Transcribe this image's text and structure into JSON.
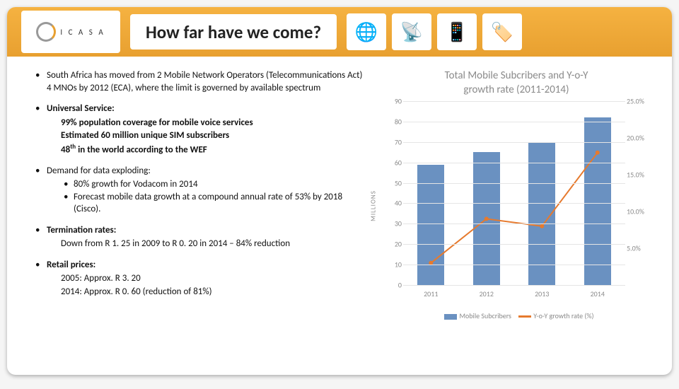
{
  "header": {
    "logo_text": "I C A S A",
    "title": "How far have we come?",
    "icons": [
      "🌐",
      "📡",
      "📱",
      "🏷️"
    ]
  },
  "bullets": {
    "b1": "South Africa has moved from 2 Mobile Network Operators (Telecommunications Act)  4 MNOs by 2012 (ECA), where the limit is governed by available spectrum",
    "b2_head": "Universal Service:",
    "b2_l1": "99% population coverage for mobile voice services",
    "b2_l2": "Estimated 60 million unique SIM subscribers",
    "b2_l3_pre": "48",
    "b2_l3_sup": "th",
    "b2_l3_post": " in the world according to the WEF",
    "b3_head": "Demand for data exploding:",
    "b3_l1": "80% growth for Vodacom in 2014",
    "b3_l2": "Forecast mobile data growth at a compound annual rate of 53% by 2018 (Cisco).",
    "b4_head": "Termination rates:",
    "b4_l1": "Down from R 1. 25 in 2009 to R 0. 20 in 2014 – 84% reduction",
    "b5_head": "Retail prices:",
    "b5_l1": "2005:  Approx. R 3. 20",
    "b5_l2": "2014:  Approx. R 0. 60 (reduction of 81%)"
  },
  "chart": {
    "title_l1": "Total Mobile Subcribers and Y-o-Y",
    "title_l2": "growth rate (2011-2014)",
    "type": "bar+line combo",
    "y_label": "MILLIONS",
    "categories": [
      "2011",
      "2012",
      "2013",
      "2014"
    ],
    "bar_values": [
      59,
      65,
      70,
      82
    ],
    "bar_color": "#6a91c1",
    "y_min": 0,
    "y_max": 90,
    "y_tick_step": 10,
    "line_values": [
      3.0,
      9.0,
      8.0,
      18.0
    ],
    "line_color": "#e67a2e",
    "y2_ticks": [
      25.0,
      20.0,
      15.0,
      10.0,
      5.0
    ],
    "y2_min": 0,
    "y2_max": 25,
    "legend": {
      "bar": "Mobile Subcribers",
      "line": "Y-o-Y growth rate (%)"
    },
    "grid_color": "#e5e5e5",
    "background_color": "#ffffff",
    "axis_font_color": "#8a8a8a",
    "axis_fontsize": 10,
    "title_fontsize": 15,
    "title_color": "#8a8a8a"
  }
}
